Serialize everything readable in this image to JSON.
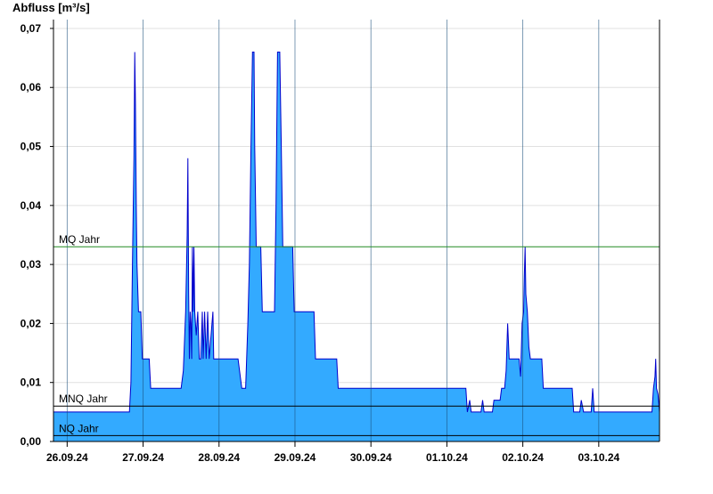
{
  "chart_data": {
    "type": "area",
    "ylabel": "Abfluss [m³/s]",
    "ylim": [
      0,
      0.0715
    ],
    "xlim": [
      -0.18,
      7.8
    ],
    "yticks": [
      {
        "value": 0.0,
        "label": "0,00"
      },
      {
        "value": 0.01,
        "label": "0,01"
      },
      {
        "value": 0.02,
        "label": "0,02"
      },
      {
        "value": 0.03,
        "label": "0,03"
      },
      {
        "value": 0.04,
        "label": "0,04"
      },
      {
        "value": 0.05,
        "label": "0,05"
      },
      {
        "value": 0.06,
        "label": "0,06"
      },
      {
        "value": 0.07,
        "label": "0,07"
      }
    ],
    "xticks": [
      {
        "value": 0,
        "label": "26.09.24"
      },
      {
        "value": 1,
        "label": "27.09.24"
      },
      {
        "value": 2,
        "label": "28.09.24"
      },
      {
        "value": 3,
        "label": "29.09.24"
      },
      {
        "value": 4,
        "label": "30.09.24"
      },
      {
        "value": 5,
        "label": "01.10.24"
      },
      {
        "value": 6,
        "label": "02.10.24"
      },
      {
        "value": 7,
        "label": "03.10.24"
      }
    ],
    "grid": true,
    "reference_lines": [
      {
        "label": "MQ Jahr",
        "value": 0.033,
        "color": "#228b22"
      },
      {
        "label": "MNQ Jahr",
        "value": 0.006,
        "color": "#000000"
      },
      {
        "label": "NQ Jahr",
        "value": 0.001,
        "color": "#000000"
      }
    ],
    "colors": {
      "fill": "#33aaff",
      "line": "#0000cc",
      "grid": "#e0e0e0"
    },
    "series": [
      {
        "points": [
          [
            -0.18,
            0.005
          ],
          [
            0.82,
            0.005
          ],
          [
            0.84,
            0.01
          ],
          [
            0.86,
            0.03
          ],
          [
            0.88,
            0.048
          ],
          [
            0.89,
            0.066
          ],
          [
            0.9,
            0.057
          ],
          [
            0.91,
            0.04
          ],
          [
            0.92,
            0.03
          ],
          [
            0.94,
            0.022
          ],
          [
            0.97,
            0.022
          ],
          [
            0.99,
            0.014
          ],
          [
            1.05,
            0.014
          ],
          [
            1.08,
            0.014
          ],
          [
            1.1,
            0.009
          ],
          [
            1.5,
            0.009
          ],
          [
            1.53,
            0.012
          ],
          [
            1.56,
            0.022
          ],
          [
            1.58,
            0.035
          ],
          [
            1.59,
            0.048
          ],
          [
            1.6,
            0.025
          ],
          [
            1.61,
            0.014
          ],
          [
            1.62,
            0.022
          ],
          [
            1.63,
            0.02
          ],
          [
            1.64,
            0.014
          ],
          [
            1.65,
            0.033
          ],
          [
            1.66,
            0.022
          ],
          [
            1.67,
            0.033
          ],
          [
            1.68,
            0.022
          ],
          [
            1.7,
            0.018
          ],
          [
            1.72,
            0.022
          ],
          [
            1.74,
            0.014
          ],
          [
            1.76,
            0.014
          ],
          [
            1.78,
            0.022
          ],
          [
            1.79,
            0.014
          ],
          [
            1.81,
            0.022
          ],
          [
            1.83,
            0.014
          ],
          [
            1.85,
            0.022
          ],
          [
            1.87,
            0.014
          ],
          [
            1.92,
            0.022
          ],
          [
            1.93,
            0.014
          ],
          [
            2.25,
            0.014
          ],
          [
            2.3,
            0.009
          ],
          [
            2.35,
            0.009
          ],
          [
            2.38,
            0.02
          ],
          [
            2.4,
            0.03
          ],
          [
            2.42,
            0.05
          ],
          [
            2.44,
            0.066
          ],
          [
            2.46,
            0.066
          ],
          [
            2.47,
            0.05
          ],
          [
            2.49,
            0.033
          ],
          [
            2.55,
            0.033
          ],
          [
            2.57,
            0.022
          ],
          [
            2.73,
            0.022
          ],
          [
            2.75,
            0.04
          ],
          [
            2.77,
            0.066
          ],
          [
            2.8,
            0.066
          ],
          [
            2.82,
            0.05
          ],
          [
            2.84,
            0.033
          ],
          [
            2.97,
            0.033
          ],
          [
            2.99,
            0.022
          ],
          [
            3.25,
            0.022
          ],
          [
            3.27,
            0.014
          ],
          [
            3.55,
            0.014
          ],
          [
            3.57,
            0.009
          ],
          [
            4.0,
            0.009
          ],
          [
            5.0,
            0.009
          ],
          [
            5.25,
            0.009
          ],
          [
            5.27,
            0.005
          ],
          [
            5.3,
            0.007
          ],
          [
            5.32,
            0.005
          ],
          [
            5.45,
            0.005
          ],
          [
            5.47,
            0.007
          ],
          [
            5.49,
            0.005
          ],
          [
            5.6,
            0.005
          ],
          [
            5.62,
            0.007
          ],
          [
            5.7,
            0.007
          ],
          [
            5.72,
            0.009
          ],
          [
            5.76,
            0.009
          ],
          [
            5.78,
            0.012
          ],
          [
            5.8,
            0.02
          ],
          [
            5.82,
            0.014
          ],
          [
            5.95,
            0.014
          ],
          [
            5.97,
            0.011
          ],
          [
            5.99,
            0.02
          ],
          [
            6.01,
            0.022
          ],
          [
            6.02,
            0.028
          ],
          [
            6.03,
            0.033
          ],
          [
            6.04,
            0.025
          ],
          [
            6.06,
            0.022
          ],
          [
            6.08,
            0.016
          ],
          [
            6.1,
            0.014
          ],
          [
            6.25,
            0.014
          ],
          [
            6.27,
            0.009
          ],
          [
            6.65,
            0.009
          ],
          [
            6.67,
            0.005
          ],
          [
            6.75,
            0.005
          ],
          [
            6.77,
            0.007
          ],
          [
            6.8,
            0.005
          ],
          [
            6.9,
            0.005
          ],
          [
            6.92,
            0.009
          ],
          [
            6.94,
            0.005
          ],
          [
            7.7,
            0.005
          ],
          [
            7.72,
            0.009
          ],
          [
            7.74,
            0.011
          ],
          [
            7.75,
            0.014
          ],
          [
            7.76,
            0.009
          ],
          [
            7.78,
            0.008
          ],
          [
            7.8,
            0.005
          ]
        ]
      }
    ]
  }
}
